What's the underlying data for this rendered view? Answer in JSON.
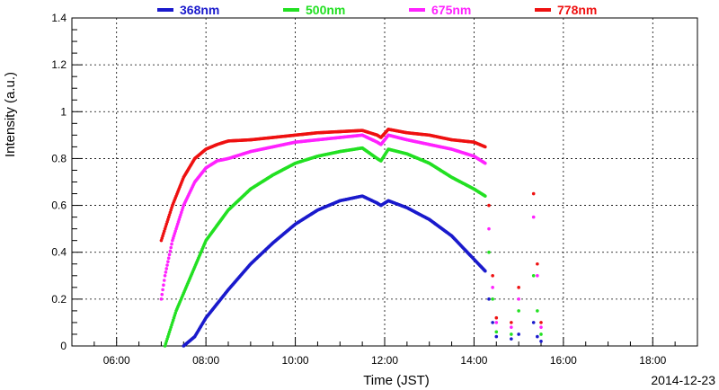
{
  "chart_data": {
    "type": "scatter",
    "title": "",
    "xlabel": "Time (JST)",
    "ylabel": "Intensity (a.u.)",
    "date": "2014-12-23",
    "xlim_hours": [
      5.0,
      19.0
    ],
    "ylim": [
      0,
      1.4
    ],
    "x_ticks": [
      "06:00",
      "08:00",
      "10:00",
      "12:00",
      "14:00",
      "16:00",
      "18:00"
    ],
    "y_ticks": [
      "0",
      "0.2",
      "0.4",
      "0.6",
      "0.8",
      "1",
      "1.2",
      "1.4"
    ],
    "grid": true,
    "legend_position": "top",
    "series": [
      {
        "name": "368nm",
        "color": "#1a1acc",
        "points": [
          [
            "07:30",
            0.0
          ],
          [
            "07:45",
            0.04
          ],
          [
            "08:00",
            0.12
          ],
          [
            "08:30",
            0.24
          ],
          [
            "09:00",
            0.35
          ],
          [
            "09:30",
            0.44
          ],
          [
            "10:00",
            0.52
          ],
          [
            "10:30",
            0.58
          ],
          [
            "11:00",
            0.62
          ],
          [
            "11:30",
            0.64
          ],
          [
            "11:50",
            0.61
          ],
          [
            "11:55",
            0.6
          ],
          [
            "12:05",
            0.62
          ],
          [
            "12:30",
            0.59
          ],
          [
            "13:00",
            0.54
          ],
          [
            "13:30",
            0.47
          ],
          [
            "14:00",
            0.37
          ],
          [
            "14:15",
            0.32
          ]
        ],
        "drop": [
          [
            "14:20",
            0.2
          ],
          [
            "14:25",
            0.1
          ],
          [
            "14:30",
            0.04
          ],
          [
            "14:50",
            0.03
          ],
          [
            "15:00",
            0.05
          ],
          [
            "15:20",
            0.1
          ],
          [
            "15:25",
            0.04
          ],
          [
            "15:30",
            0.02
          ]
        ]
      },
      {
        "name": "500nm",
        "color": "#22e022",
        "points": [
          [
            "07:05",
            0.0
          ],
          [
            "07:10",
            0.05
          ],
          [
            "07:20",
            0.15
          ],
          [
            "07:40",
            0.3
          ],
          [
            "08:00",
            0.45
          ],
          [
            "08:30",
            0.58
          ],
          [
            "09:00",
            0.67
          ],
          [
            "09:30",
            0.73
          ],
          [
            "10:00",
            0.78
          ],
          [
            "10:30",
            0.81
          ],
          [
            "11:00",
            0.83
          ],
          [
            "11:30",
            0.845
          ],
          [
            "11:50",
            0.8
          ],
          [
            "11:55",
            0.79
          ],
          [
            "12:05",
            0.84
          ],
          [
            "12:30",
            0.82
          ],
          [
            "13:00",
            0.78
          ],
          [
            "13:30",
            0.72
          ],
          [
            "14:00",
            0.67
          ],
          [
            "14:15",
            0.64
          ]
        ],
        "drop": [
          [
            "14:20",
            0.4
          ],
          [
            "14:25",
            0.2
          ],
          [
            "14:30",
            0.06
          ],
          [
            "14:50",
            0.05
          ],
          [
            "15:00",
            0.15
          ],
          [
            "15:20",
            0.3
          ],
          [
            "15:25",
            0.15
          ],
          [
            "15:30",
            0.05
          ]
        ]
      },
      {
        "name": "675nm",
        "color": "#ff22ff",
        "points": [
          [
            "07:00",
            0.2
          ],
          [
            "07:05",
            0.3
          ],
          [
            "07:15",
            0.45
          ],
          [
            "07:30",
            0.6
          ],
          [
            "07:45",
            0.7
          ],
          [
            "08:00",
            0.76
          ],
          [
            "08:15",
            0.79
          ],
          [
            "08:30",
            0.8
          ],
          [
            "09:00",
            0.83
          ],
          [
            "09:30",
            0.85
          ],
          [
            "10:00",
            0.87
          ],
          [
            "10:30",
            0.88
          ],
          [
            "11:00",
            0.89
          ],
          [
            "11:30",
            0.9
          ],
          [
            "11:50",
            0.87
          ],
          [
            "11:55",
            0.86
          ],
          [
            "12:05",
            0.9
          ],
          [
            "12:30",
            0.88
          ],
          [
            "13:00",
            0.86
          ],
          [
            "13:30",
            0.84
          ],
          [
            "14:00",
            0.81
          ],
          [
            "14:15",
            0.78
          ]
        ],
        "drop": [
          [
            "14:20",
            0.5
          ],
          [
            "14:25",
            0.25
          ],
          [
            "14:30",
            0.1
          ],
          [
            "14:50",
            0.08
          ],
          [
            "15:00",
            0.2
          ],
          [
            "15:20",
            0.55
          ],
          [
            "15:25",
            0.3
          ],
          [
            "15:30",
            0.08
          ]
        ]
      },
      {
        "name": "778nm",
        "color": "#ee1111",
        "points": [
          [
            "07:00",
            0.45
          ],
          [
            "07:05",
            0.5
          ],
          [
            "07:15",
            0.6
          ],
          [
            "07:30",
            0.72
          ],
          [
            "07:45",
            0.8
          ],
          [
            "08:00",
            0.84
          ],
          [
            "08:15",
            0.86
          ],
          [
            "08:30",
            0.875
          ],
          [
            "09:00",
            0.88
          ],
          [
            "09:30",
            0.89
          ],
          [
            "10:00",
            0.9
          ],
          [
            "10:30",
            0.91
          ],
          [
            "11:00",
            0.915
          ],
          [
            "11:30",
            0.92
          ],
          [
            "11:50",
            0.9
          ],
          [
            "11:55",
            0.89
          ],
          [
            "12:05",
            0.925
          ],
          [
            "12:30",
            0.91
          ],
          [
            "13:00",
            0.9
          ],
          [
            "13:30",
            0.88
          ],
          [
            "14:00",
            0.87
          ],
          [
            "14:15",
            0.85
          ]
        ],
        "drop": [
          [
            "14:20",
            0.6
          ],
          [
            "14:25",
            0.3
          ],
          [
            "14:30",
            0.12
          ],
          [
            "14:50",
            0.1
          ],
          [
            "15:00",
            0.25
          ],
          [
            "15:20",
            0.65
          ],
          [
            "15:25",
            0.35
          ],
          [
            "15:30",
            0.1
          ]
        ]
      }
    ]
  }
}
